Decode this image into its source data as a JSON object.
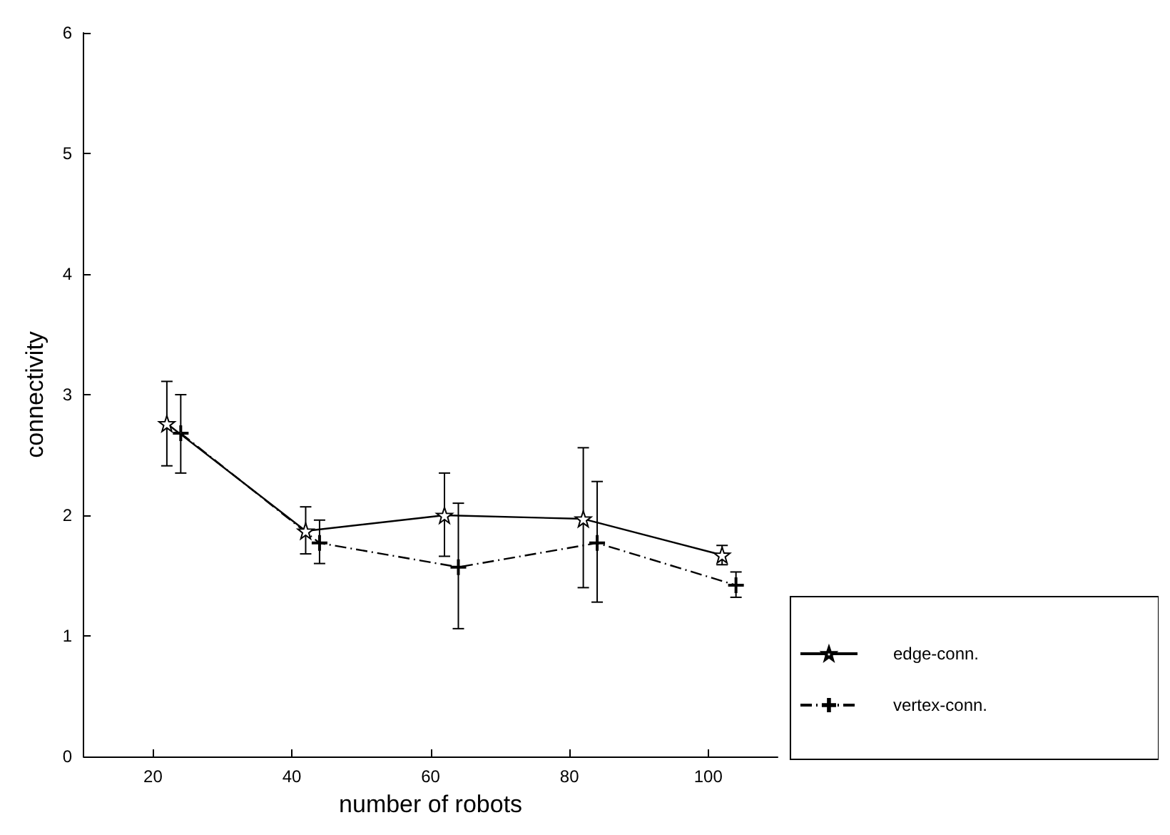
{
  "chart_data": {
    "type": "line",
    "xlabel": "number of robots",
    "ylabel": "connectivity",
    "xlim": [
      10,
      110
    ],
    "xticks": [
      20,
      40,
      60,
      80,
      100
    ],
    "ylim": [
      0,
      6
    ],
    "yticks": [
      0,
      1,
      2,
      3,
      4,
      5,
      6
    ],
    "grid": false,
    "legend": "bottom right",
    "series": [
      {
        "name": "edge-conn.",
        "color": "#000000",
        "marker": "star",
        "line_style": "solid",
        "x": [
          22,
          42,
          62,
          82,
          102
        ],
        "values": [
          2.76,
          1.87,
          2.0,
          1.97,
          1.67
        ],
        "errors": [
          [
            2.41,
            3.11
          ],
          [
            1.68,
            2.07
          ],
          [
            1.66,
            2.35
          ],
          [
            1.4,
            2.56
          ],
          [
            1.59,
            1.75
          ]
        ]
      },
      {
        "name": "vertex-conn.",
        "color": "#000000",
        "marker": "cross",
        "line_style": "dashed",
        "x": [
          24,
          44,
          64,
          84,
          104
        ],
        "values": [
          2.68,
          1.77,
          1.57,
          1.77,
          1.42
        ],
        "errors": [
          [
            2.35,
            3.0
          ],
          [
            1.6,
            1.96
          ],
          [
            1.06,
            2.1
          ],
          [
            1.28,
            2.28
          ],
          [
            1.32,
            1.53
          ]
        ]
      }
    ]
  }
}
